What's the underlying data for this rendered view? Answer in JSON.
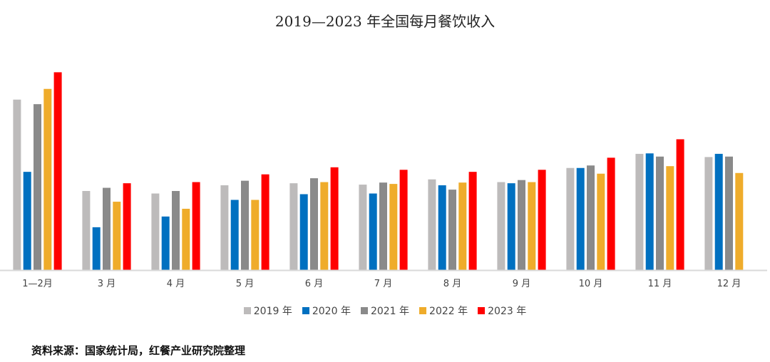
{
  "chart_data": {
    "type": "bar",
    "title": "2019—2023 年全国每月餐饮收入",
    "xlabel": "",
    "ylabel": "",
    "categories": [
      "1—2月",
      "3 月",
      "4 月",
      "5 月",
      "6 月",
      "7 月",
      "8 月",
      "9 月",
      "10 月",
      "11 月",
      "12 月"
    ],
    "series": [
      {
        "name": "2019 年",
        "color": "#bdbbbb",
        "values": [
          7480,
          3470,
          3360,
          3720,
          3810,
          3750,
          3980,
          3860,
          4480,
          5100,
          4960
        ]
      },
      {
        "name": "2020 年",
        "color": "#0070c0",
        "values": [
          4310,
          1880,
          2350,
          3080,
          3330,
          3360,
          3720,
          3810,
          4480,
          5120,
          5100
        ]
      },
      {
        "name": "2021 年",
        "color": "#8a8a8a",
        "values": [
          7280,
          3610,
          3470,
          3920,
          4030,
          3840,
          3530,
          3950,
          4590,
          4980,
          4980
        ]
      },
      {
        "name": "2022 年",
        "color": "#efac2b",
        "values": [
          7950,
          3000,
          2690,
          3080,
          3860,
          3780,
          3840,
          3860,
          4230,
          4560,
          4260
        ]
      },
      {
        "name": "2023 年",
        "color": "#ff0000",
        "values": [
          8680,
          3810,
          3860,
          4200,
          4510,
          4400,
          4310,
          4400,
          4930,
          5740,
          null
        ]
      }
    ],
    "ylim": [
      0,
      10600
    ],
    "grid": false,
    "legend_position": "bottom",
    "y_axis_labels_shown": false
  },
  "source": "资料来源：国家统计局，红餐产业研究院整理",
  "watermark": "红餐产业研究院"
}
